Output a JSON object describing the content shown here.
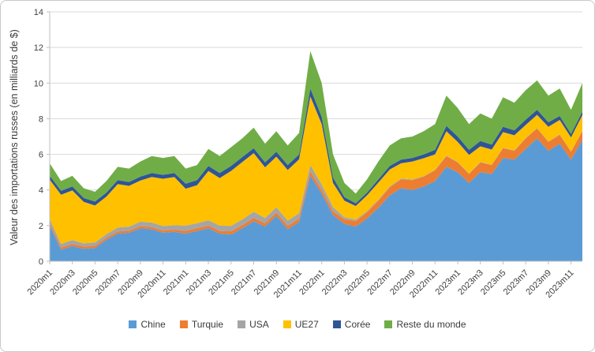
{
  "chart_data": {
    "type": "area",
    "stacked": true,
    "title": "",
    "xlabel": "",
    "ylabel": "Valeur des importations russes (en milliards de $)",
    "ylim": [
      0,
      14
    ],
    "y_ticks": [
      0,
      2,
      4,
      6,
      8,
      10,
      12,
      14
    ],
    "x_tick_every": 2,
    "grid": "horizontal",
    "legend_position": "bottom",
    "colors": {
      "gridline": "#D9D9D9",
      "axis": "#BFBFBF",
      "text": "#404040",
      "background": "#FFFFFF"
    },
    "x": [
      "2020m1",
      "2020m2",
      "2020m3",
      "2020m4",
      "2020m5",
      "2020m6",
      "2020m7",
      "2020m8",
      "2020m9",
      "2020m10",
      "2020m11",
      "2020m12",
      "2021m1",
      "2021m2",
      "2021m3",
      "2021m4",
      "2021m5",
      "2021m6",
      "2021m7",
      "2021m8",
      "2021m9",
      "2021m10",
      "2021m11",
      "2021m12",
      "2022m1",
      "2022m2",
      "2022m3",
      "2022m4",
      "2022m5",
      "2022m6",
      "2022m7",
      "2022m8",
      "2022m9",
      "2022m10",
      "2022m11",
      "2022m12",
      "2023m1",
      "2023m2",
      "2023m3",
      "2023m4",
      "2023m5",
      "2023m6",
      "2023m7",
      "2023m8",
      "2023m9",
      "2023m10",
      "2023m11",
      "2023m12"
    ],
    "series": [
      {
        "name": "Chine",
        "color": "#5B9BD5",
        "values": [
          2.0,
          0.65,
          0.85,
          0.7,
          0.75,
          1.2,
          1.55,
          1.6,
          1.85,
          1.8,
          1.6,
          1.65,
          1.55,
          1.7,
          1.85,
          1.55,
          1.5,
          1.85,
          2.25,
          1.95,
          2.55,
          1.8,
          2.2,
          4.8,
          3.8,
          2.6,
          2.1,
          1.95,
          2.4,
          3.0,
          3.7,
          4.1,
          4.0,
          4.2,
          4.5,
          5.3,
          5.0,
          4.4,
          5.0,
          4.9,
          5.8,
          5.7,
          6.3,
          6.9,
          6.2,
          6.6,
          5.7,
          6.8
        ]
      },
      {
        "name": "Turquie",
        "color": "#ED7D31",
        "values": [
          0.12,
          0.12,
          0.12,
          0.12,
          0.12,
          0.12,
          0.12,
          0.12,
          0.12,
          0.12,
          0.12,
          0.12,
          0.15,
          0.15,
          0.15,
          0.15,
          0.18,
          0.18,
          0.18,
          0.18,
          0.18,
          0.18,
          0.2,
          0.25,
          0.2,
          0.2,
          0.25,
          0.3,
          0.35,
          0.4,
          0.45,
          0.5,
          0.55,
          0.55,
          0.6,
          0.6,
          0.55,
          0.5,
          0.55,
          0.5,
          0.55,
          0.5,
          0.6,
          0.55,
          0.5,
          0.5,
          0.45,
          0.5
        ]
      },
      {
        "name": "USA",
        "color": "#A5A5A5",
        "values": [
          0.25,
          0.2,
          0.22,
          0.18,
          0.18,
          0.2,
          0.22,
          0.22,
          0.25,
          0.25,
          0.25,
          0.25,
          0.3,
          0.28,
          0.3,
          0.3,
          0.3,
          0.32,
          0.35,
          0.3,
          0.3,
          0.3,
          0.3,
          0.35,
          0.3,
          0.25,
          0.12,
          0.08,
          0.06,
          0.05,
          0.05,
          0.04,
          0.04,
          0.03,
          0.03,
          0.03,
          0.02,
          0.02,
          0.02,
          0.02,
          0.02,
          0.02,
          0.02,
          0.02,
          0.02,
          0.02,
          0.02,
          0.02
        ]
      },
      {
        "name": "UE27",
        "color": "#FFC000",
        "values": [
          2.21,
          2.76,
          2.79,
          2.33,
          2.08,
          2.11,
          2.44,
          2.29,
          2.31,
          2.56,
          2.66,
          2.71,
          2.07,
          2.14,
          2.77,
          2.67,
          3.09,
          3.22,
          3.29,
          2.84,
          2.84,
          2.84,
          3.02,
          3.85,
          3.4,
          1.35,
          0.93,
          0.77,
          0.89,
          0.97,
          0.95,
          0.86,
          1.01,
          1.0,
          0.87,
          1.37,
          1.13,
          1.05,
          0.88,
          0.85,
          0.88,
          0.85,
          0.73,
          0.75,
          0.83,
          0.81,
          0.78,
          0.88
        ]
      },
      {
        "name": "Corée",
        "color": "#2F5597",
        "values": [
          0.22,
          0.22,
          0.22,
          0.22,
          0.22,
          0.22,
          0.22,
          0.22,
          0.22,
          0.22,
          0.22,
          0.22,
          0.28,
          0.28,
          0.28,
          0.28,
          0.28,
          0.28,
          0.28,
          0.28,
          0.28,
          0.28,
          0.28,
          0.45,
          0.4,
          0.3,
          0.2,
          0.15,
          0.15,
          0.18,
          0.2,
          0.2,
          0.2,
          0.22,
          0.25,
          0.3,
          0.3,
          0.28,
          0.3,
          0.28,
          0.3,
          0.28,
          0.3,
          0.28,
          0.25,
          0.22,
          0.2,
          0.2
        ]
      },
      {
        "name": "Reste du monde",
        "color": "#70AD47",
        "values": [
          0.7,
          0.55,
          0.6,
          0.55,
          0.55,
          0.65,
          0.75,
          0.75,
          0.85,
          0.95,
          0.95,
          0.95,
          0.85,
          0.85,
          0.95,
          0.95,
          1.05,
          1.05,
          1.15,
          1.05,
          1.15,
          1.1,
          1.2,
          2.1,
          1.9,
          1.3,
          0.8,
          0.55,
          0.75,
          1.0,
          1.15,
          1.2,
          1.2,
          1.3,
          1.45,
          1.7,
          1.6,
          1.45,
          1.55,
          1.45,
          1.65,
          1.55,
          1.65,
          1.65,
          1.5,
          1.55,
          1.35,
          1.6
        ]
      }
    ]
  }
}
